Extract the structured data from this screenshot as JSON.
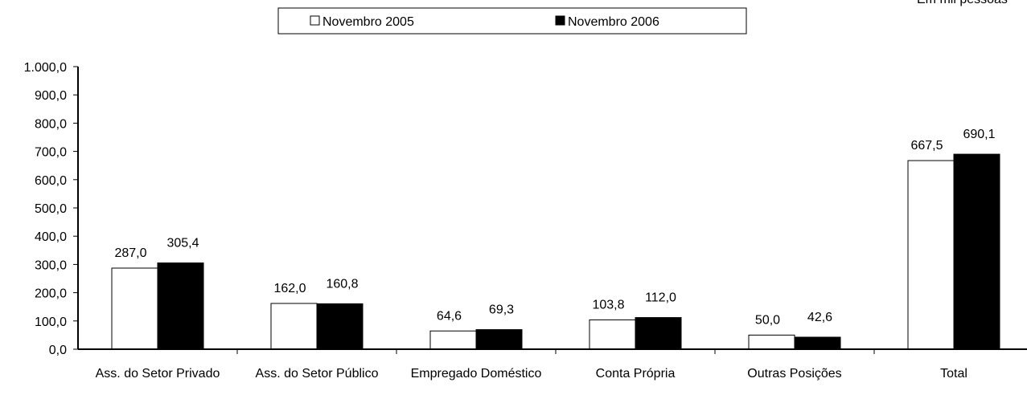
{
  "chart_data": {
    "type": "bar",
    "note": "Em mil pessoas",
    "categories": [
      "Ass. do Setor Privado",
      "Ass. do Setor Público",
      "Empregado Doméstico",
      "Conta Própria",
      "Outras Posições",
      "Total"
    ],
    "series": [
      {
        "name": "Novembro 2005",
        "color": "#ffffff",
        "values": [
          287.0,
          162.0,
          64.6,
          103.8,
          50.0,
          667.5
        ],
        "value_labels": [
          "287,0",
          "162,0",
          "64,6",
          "103,8",
          "50,0",
          "667,5"
        ]
      },
      {
        "name": "Novembro 2006",
        "color": "#000000",
        "values": [
          305.4,
          160.8,
          69.3,
          112.0,
          42.6,
          690.1
        ],
        "value_labels": [
          "305,4",
          "160,8",
          "69,3",
          "112,0",
          "42,6",
          "690,1"
        ]
      }
    ],
    "ylim": [
      0,
      1000
    ],
    "yticks": [
      {
        "value": 0,
        "label": "0,0"
      },
      {
        "value": 100,
        "label": "100,0"
      },
      {
        "value": 200,
        "label": "200,0"
      },
      {
        "value": 300,
        "label": "300,0"
      },
      {
        "value": 400,
        "label": "400,0"
      },
      {
        "value": 500,
        "label": "500,0"
      },
      {
        "value": 600,
        "label": "600,0"
      },
      {
        "value": 700,
        "label": "700,0"
      },
      {
        "value": 800,
        "label": "800,0"
      },
      {
        "value": 900,
        "label": "900,0"
      },
      {
        "value": 1000,
        "label": "1.000,0"
      }
    ],
    "legend": "top"
  }
}
